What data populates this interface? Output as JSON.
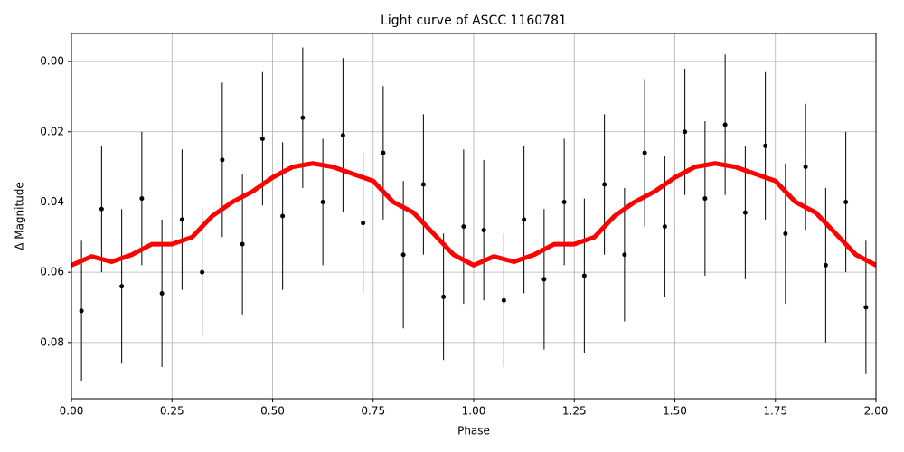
{
  "chart_data": {
    "type": "errorbar_line",
    "title": "Light curve of ASCC 1160781",
    "xlabel": "Phase",
    "ylabel": "Δ Magnitude",
    "xlim": [
      0,
      2
    ],
    "xticks": [
      {
        "value": 0,
        "label": "0.00"
      },
      {
        "value": 0.25,
        "label": "0.25"
      },
      {
        "value": 0.5,
        "label": "0.50"
      },
      {
        "value": 0.75,
        "label": "0.75"
      },
      {
        "value": 1,
        "label": "1.00"
      },
      {
        "value": 1.25,
        "label": "1.25"
      },
      {
        "value": 1.5,
        "label": "1.50"
      },
      {
        "value": 1.75,
        "label": "1.75"
      },
      {
        "value": 2,
        "label": "2.00"
      }
    ],
    "ylim": [
      -0.008,
      0.096
    ],
    "y_inverted": true,
    "yticks": [
      {
        "value": 0,
        "label": "0.00"
      },
      0.02,
      0.04,
      0.06,
      0.08
    ],
    "grid": true,
    "points": {
      "color": "#000000",
      "x": [
        0.025,
        0.075,
        0.125,
        0.175,
        0.225,
        0.275,
        0.325,
        0.375,
        0.425,
        0.475,
        0.525,
        0.575,
        0.625,
        0.675,
        0.725,
        0.775,
        0.825,
        0.875,
        0.925,
        0.975,
        1.025,
        1.075,
        1.125,
        1.175,
        1.225,
        1.275,
        1.325,
        1.375,
        1.425,
        1.475,
        1.525,
        1.575,
        1.625,
        1.675,
        1.725,
        1.775,
        1.825,
        1.875,
        1.925,
        1.975
      ],
      "values": [
        0.071,
        0.042,
        0.064,
        0.039,
        0.066,
        0.045,
        0.06,
        0.028,
        0.052,
        0.022,
        0.044,
        0.016,
        0.04,
        0.021,
        0.046,
        0.026,
        0.055,
        0.035,
        0.067,
        0.047,
        0.048,
        0.068,
        0.045,
        0.062,
        0.04,
        0.061,
        0.035,
        0.055,
        0.026,
        0.047,
        0.02,
        0.039,
        0.018,
        0.043,
        0.024,
        0.049,
        0.03,
        0.058,
        0.04,
        0.07
      ],
      "errors": [
        0.02,
        0.018,
        0.022,
        0.019,
        0.021,
        0.02,
        0.018,
        0.022,
        0.02,
        0.019,
        0.021,
        0.02,
        0.018,
        0.022,
        0.02,
        0.019,
        0.021,
        0.02,
        0.018,
        0.022,
        0.02,
        0.019,
        0.021,
        0.02,
        0.018,
        0.022,
        0.02,
        0.019,
        0.021,
        0.02,
        0.018,
        0.022,
        0.02,
        0.019,
        0.021,
        0.02,
        0.018,
        0.022,
        0.02,
        0.019
      ]
    },
    "curve": {
      "color": "#ff0000",
      "x": [
        0,
        0.05,
        0.1,
        0.15,
        0.2,
        0.25,
        0.3,
        0.35,
        0.4,
        0.45,
        0.5,
        0.55,
        0.6,
        0.65,
        0.7,
        0.75,
        0.8,
        0.85,
        0.9,
        0.95,
        1,
        1.05,
        1.1,
        1.15,
        1.2,
        1.25,
        1.3,
        1.35,
        1.4,
        1.45,
        1.5,
        1.55,
        1.6,
        1.65,
        1.7,
        1.75,
        1.8,
        1.85,
        1.9,
        1.95,
        2
      ],
      "values": [
        0.058,
        0.0555,
        0.057,
        0.055,
        0.052,
        0.052,
        0.05,
        0.044,
        0.04,
        0.037,
        0.033,
        0.03,
        0.029,
        0.03,
        0.032,
        0.034,
        0.04,
        0.043,
        0.049,
        0.055,
        0.058,
        0.0555,
        0.057,
        0.055,
        0.052,
        0.052,
        0.05,
        0.044,
        0.04,
        0.037,
        0.033,
        0.03,
        0.029,
        0.03,
        0.032,
        0.034,
        0.04,
        0.043,
        0.049,
        0.055,
        0.058
      ]
    }
  }
}
